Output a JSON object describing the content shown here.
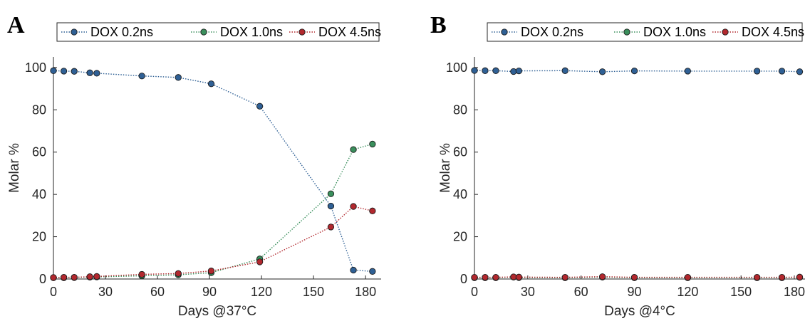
{
  "chart_data": [
    {
      "type": "line",
      "panel_label": "A",
      "xlabel": "Days @37°C",
      "ylabel": "Molar %",
      "xlim": [
        0,
        189
      ],
      "ylim": [
        0,
        105
      ],
      "xticks": [
        0,
        30,
        60,
        90,
        120,
        150,
        180
      ],
      "yticks": [
        0,
        20,
        40,
        60,
        80,
        100
      ],
      "grid": false,
      "legend_position": "top",
      "series": [
        {
          "name": "DOX 0.2ns",
          "color": "#2f6095",
          "x": [
            0,
            6,
            12,
            21,
            25,
            51,
            72,
            91,
            119,
            160,
            173,
            184
          ],
          "y": [
            98.5,
            98.3,
            98.2,
            97.5,
            97.3,
            96.0,
            95.3,
            92.3,
            81.7,
            34.5,
            4.2,
            3.6
          ]
        },
        {
          "name": "DOX 1.0ns",
          "color": "#3a8f5c",
          "x": [
            0,
            6,
            12,
            21,
            25,
            51,
            72,
            91,
            119,
            160,
            173,
            184
          ],
          "y": [
            0.6,
            0.6,
            0.7,
            0.9,
            1.0,
            1.5,
            2.0,
            3.0,
            9.5,
            40.3,
            61.2,
            63.8
          ]
        },
        {
          "name": "DOX 4.5ns",
          "color": "#b2282e",
          "x": [
            0,
            6,
            12,
            21,
            25,
            51,
            72,
            91,
            119,
            160,
            173,
            184
          ],
          "y": [
            0.7,
            0.8,
            0.8,
            1.1,
            1.2,
            2.2,
            2.6,
            3.8,
            8.1,
            24.6,
            34.3,
            32.2
          ]
        }
      ]
    },
    {
      "type": "line",
      "panel_label": "B",
      "xlabel": "Days @4°C",
      "ylabel": "Molar %",
      "xlim": [
        0,
        186
      ],
      "ylim": [
        0,
        105
      ],
      "xticks": [
        0,
        30,
        60,
        90,
        120,
        150,
        180
      ],
      "yticks": [
        0,
        20,
        40,
        60,
        80,
        100
      ],
      "grid": false,
      "legend_position": "top",
      "series": [
        {
          "name": "DOX 0.2ns",
          "color": "#2f6095",
          "x": [
            0,
            6,
            12,
            22,
            25,
            51,
            72,
            90,
            120,
            159,
            173,
            183
          ],
          "y": [
            98.6,
            98.5,
            98.5,
            98.1,
            98.4,
            98.5,
            98.0,
            98.4,
            98.3,
            98.3,
            98.3,
            98.0
          ]
        },
        {
          "name": "DOX 1.0ns",
          "color": "#3a8f5c",
          "x": [
            0,
            6,
            12,
            22,
            25,
            51,
            72,
            90,
            120,
            159,
            173,
            183
          ],
          "y": [
            0.6,
            0.6,
            0.6,
            0.9,
            0.7,
            0.6,
            0.9,
            0.6,
            0.6,
            0.6,
            0.6,
            0.8
          ]
        },
        {
          "name": "DOX 4.5ns",
          "color": "#b2282e",
          "x": [
            0,
            6,
            12,
            22,
            25,
            51,
            72,
            90,
            120,
            159,
            173,
            183
          ],
          "y": [
            0.8,
            0.8,
            0.8,
            1.0,
            0.9,
            0.8,
            1.1,
            0.8,
            0.8,
            0.8,
            0.8,
            0.9
          ]
        }
      ]
    }
  ]
}
